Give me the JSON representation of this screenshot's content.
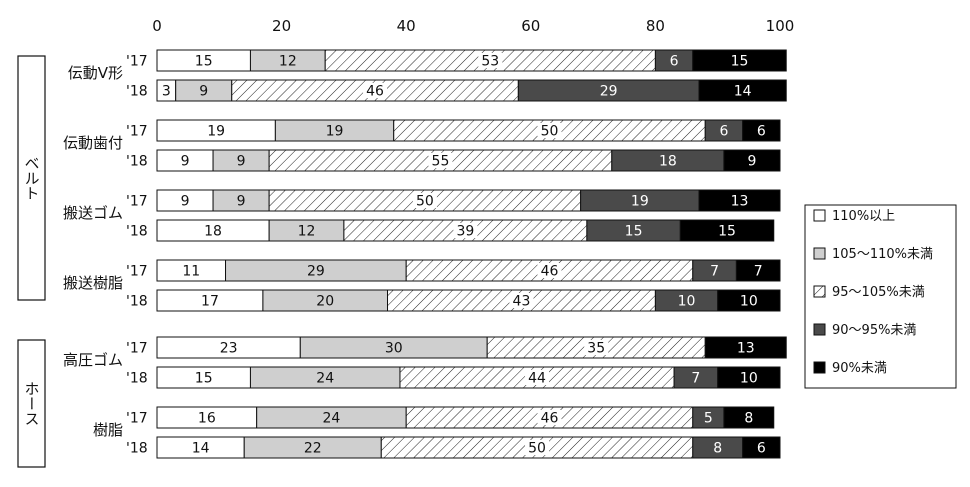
{
  "chart_data": {
    "type": "bar",
    "orientation": "horizontal",
    "stacked": true,
    "xlim": [
      0,
      100
    ],
    "x_ticks": [
      "0",
      "20",
      "40",
      "60",
      "80",
      "100"
    ],
    "groups": [
      {
        "label": "ベルト",
        "categories": [
          "伝動V形",
          "伝動歯付",
          "搬送ゴム",
          "搬送樹脂"
        ]
      },
      {
        "label": "ホース",
        "categories": [
          "高圧ゴム",
          "樹脂"
        ]
      }
    ],
    "years": [
      "'17",
      "'18"
    ],
    "series": [
      {
        "name": "110%以上",
        "color": "#ffffff"
      },
      {
        "name": "105～110%未満",
        "color": "#cfcfcf"
      },
      {
        "name": "95～105%未満",
        "color": "hatch"
      },
      {
        "name": "90～95%未満",
        "color": "#4a4a4a"
      },
      {
        "name": "90%未満",
        "color": "#000000"
      }
    ],
    "rows": [
      {
        "category": "伝動V形",
        "year": "'17",
        "values": [
          15,
          12,
          53,
          6,
          15
        ]
      },
      {
        "category": "伝動V形",
        "year": "'18",
        "values": [
          3,
          9,
          46,
          29,
          14
        ]
      },
      {
        "category": "伝動歯付",
        "year": "'17",
        "values": [
          19,
          19,
          50,
          6,
          6
        ]
      },
      {
        "category": "伝動歯付",
        "year": "'18",
        "values": [
          9,
          9,
          55,
          18,
          9
        ]
      },
      {
        "category": "搬送ゴム",
        "year": "'17",
        "values": [
          9,
          9,
          50,
          19,
          13
        ]
      },
      {
        "category": "搬送ゴム",
        "year": "'18",
        "values": [
          18,
          12,
          39,
          15,
          15
        ]
      },
      {
        "category": "搬送樹脂",
        "year": "'17",
        "values": [
          11,
          29,
          46,
          7,
          7
        ]
      },
      {
        "category": "搬送樹脂",
        "year": "'18",
        "values": [
          17,
          20,
          43,
          10,
          10
        ]
      },
      {
        "category": "高圧ゴム",
        "year": "'17",
        "values": [
          23,
          30,
          35,
          0,
          13
        ]
      },
      {
        "category": "高圧ゴム",
        "year": "'18",
        "values": [
          15,
          24,
          44,
          7,
          10
        ]
      },
      {
        "category": "樹脂",
        "year": "'17",
        "values": [
          16,
          24,
          46,
          5,
          8
        ]
      },
      {
        "category": "樹脂",
        "year": "'18",
        "values": [
          14,
          22,
          50,
          8,
          6
        ]
      }
    ],
    "legend_position": "right",
    "grid": false
  }
}
